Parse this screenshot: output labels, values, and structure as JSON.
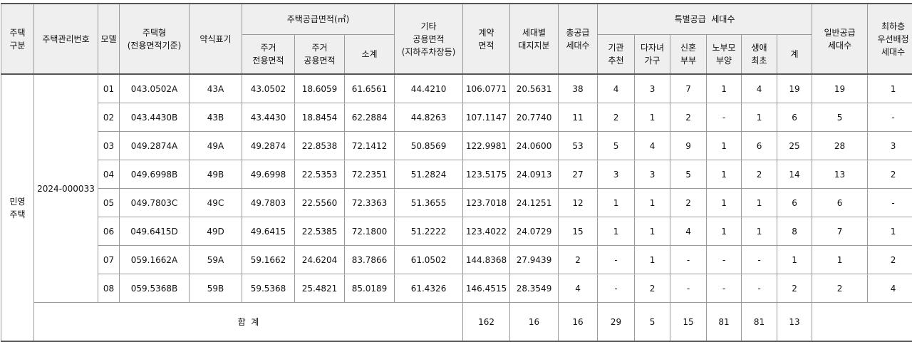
{
  "headers": {
    "type": [
      "주택",
      "구분"
    ],
    "mgmt_no": "주택관리번호",
    "model": "모델",
    "house_type": [
      "주택형",
      "(전용면적기준)"
    ],
    "abbr": "약식표기",
    "supply_area": "주택공급면적(㎡)",
    "exclusive": [
      "주거",
      "전용면적"
    ],
    "common": [
      "주거",
      "공용면적"
    ],
    "subtotal": "소계",
    "other_common": [
      "기타",
      "공용면적",
      "(지하주차장등)"
    ],
    "contract_area": [
      "계약",
      "면적"
    ],
    "land_share": [
      "세대별",
      "대지지분"
    ],
    "total_supply": [
      "총공급",
      "세대수"
    ],
    "special": "특별공급  세대수",
    "inst": [
      "기관",
      "추천"
    ],
    "multi": [
      "다자녀",
      "가구"
    ],
    "newlywed": [
      "신혼",
      "부부"
    ],
    "elder": [
      "노부모",
      "부양"
    ],
    "first": [
      "생애",
      "최초"
    ],
    "special_sum": "계",
    "general": [
      "일반공급",
      "세대수"
    ],
    "lowest": [
      "최하층",
      "우선배정",
      "세대수"
    ]
  },
  "group": {
    "type": [
      "민영",
      "주택"
    ],
    "mgmt_no": "2024-000033"
  },
  "rows": [
    {
      "model": "01",
      "house_type": "043.0502A",
      "abbr": "43A",
      "excl": "43.0502",
      "common": "18.6059",
      "sub": "61.6561",
      "other": "44.4210",
      "contract": "106.0771",
      "land": "20.5631",
      "total": "38",
      "inst": "4",
      "multi": "3",
      "newly": "7",
      "elder": "1",
      "first": "4",
      "ssum": "19",
      "general": "19",
      "lowest": "1"
    },
    {
      "model": "02",
      "house_type": "043.4430B",
      "abbr": "43B",
      "excl": "43.4430",
      "common": "18.8454",
      "sub": "62.2884",
      "other": "44.8263",
      "contract": "107.1147",
      "land": "20.7740",
      "total": "11",
      "inst": "2",
      "multi": "1",
      "newly": "2",
      "elder": "-",
      "first": "1",
      "ssum": "6",
      "general": "5",
      "lowest": "-"
    },
    {
      "model": "03",
      "house_type": "049.2874A",
      "abbr": "49A",
      "excl": "49.2874",
      "common": "22.8538",
      "sub": "72.1412",
      "other": "50.8569",
      "contract": "122.9981",
      "land": "24.0600",
      "total": "53",
      "inst": "5",
      "multi": "4",
      "newly": "9",
      "elder": "1",
      "first": "6",
      "ssum": "25",
      "general": "28",
      "lowest": "3"
    },
    {
      "model": "04",
      "house_type": "049.6998B",
      "abbr": "49B",
      "excl": "49.6998",
      "common": "22.5353",
      "sub": "72.2351",
      "other": "51.2824",
      "contract": "123.5175",
      "land": "24.0913",
      "total": "27",
      "inst": "3",
      "multi": "3",
      "newly": "5",
      "elder": "1",
      "first": "2",
      "ssum": "14",
      "general": "13",
      "lowest": "2"
    },
    {
      "model": "05",
      "house_type": "049.7803C",
      "abbr": "49C",
      "excl": "49.7803",
      "common": "22.5560",
      "sub": "72.3363",
      "other": "51.3655",
      "contract": "123.7018",
      "land": "24.1251",
      "total": "12",
      "inst": "1",
      "multi": "1",
      "newly": "2",
      "elder": "1",
      "first": "1",
      "ssum": "6",
      "general": "6",
      "lowest": "-"
    },
    {
      "model": "06",
      "house_type": "049.6415D",
      "abbr": "49D",
      "excl": "49.6415",
      "common": "22.5385",
      "sub": "72.1800",
      "other": "51.2222",
      "contract": "123.4022",
      "land": "24.0729",
      "total": "15",
      "inst": "1",
      "multi": "1",
      "newly": "4",
      "elder": "1",
      "first": "1",
      "ssum": "8",
      "general": "7",
      "lowest": "1"
    },
    {
      "model": "07",
      "house_type": "059.1662A",
      "abbr": "59A",
      "excl": "59.1662",
      "common": "24.6204",
      "sub": "83.7866",
      "other": "61.0502",
      "contract": "144.8368",
      "land": "27.9439",
      "total": "2",
      "inst": "-",
      "multi": "1",
      "newly": "-",
      "elder": "-",
      "first": "-",
      "ssum": "1",
      "general": "1",
      "lowest": "2"
    },
    {
      "model": "08",
      "house_type": "059.5368B",
      "abbr": "59B",
      "excl": "59.5368",
      "common": "25.4821",
      "sub": "85.0189",
      "other": "61.4326",
      "contract": "146.4515",
      "land": "28.3549",
      "total": "4",
      "inst": "-",
      "multi": "2",
      "newly": "-",
      "elder": "-",
      "first": "-",
      "ssum": "2",
      "general": "2",
      "lowest": "4"
    }
  ],
  "totals": {
    "label": "합  계",
    "total": "162",
    "inst": "16",
    "multi": "16",
    "newly": "29",
    "elder": "5",
    "first": "15",
    "ssum": "81",
    "general": "81",
    "lowest": "13"
  }
}
